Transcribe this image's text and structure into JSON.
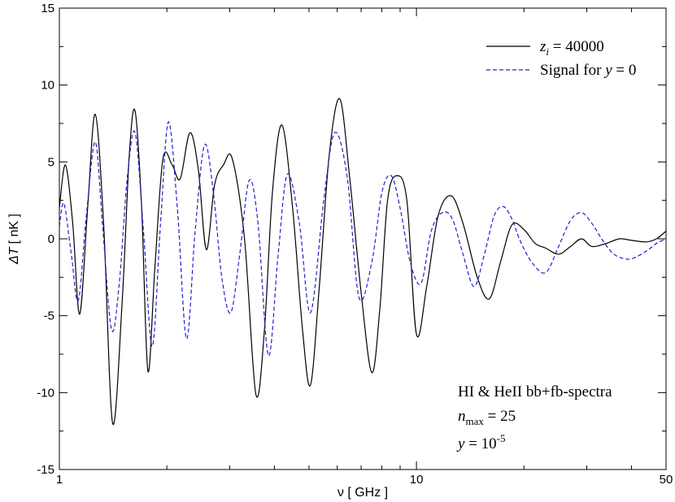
{
  "chart_data": {
    "type": "line",
    "title": "",
    "xlabel": "ν [ GHz ]",
    "ylabel_symbol": "ΔT",
    "ylabel_unit": "[ nK ]",
    "xscale": "log",
    "xlim": [
      1,
      50
    ],
    "ylim": [
      -15,
      15
    ],
    "x_ticks": [
      1,
      10,
      50
    ],
    "x_tick_labels": [
      "1",
      "10",
      "50"
    ],
    "y_ticks": [
      -15,
      -10,
      -5,
      0,
      5,
      10,
      15
    ],
    "y_tick_labels": [
      "-15",
      "-10",
      "-5",
      "0",
      "5",
      "10",
      "15"
    ],
    "grid": false,
    "legend_position": "top-right",
    "series": [
      {
        "name_var": "z",
        "name_sub": "i",
        "name_rest": " = 40000",
        "color": "#000000",
        "dash": "solid",
        "x": [
          1.0,
          1.04,
          1.09,
          1.14,
          1.2,
          1.26,
          1.33,
          1.41,
          1.5,
          1.57,
          1.63,
          1.7,
          1.77,
          1.85,
          1.95,
          2.07,
          2.18,
          2.32,
          2.45,
          2.58,
          2.72,
          2.88,
          3.05,
          3.3,
          3.55,
          3.75,
          3.95,
          4.2,
          4.5,
          4.8,
          5.05,
          5.35,
          5.7,
          6.1,
          6.5,
          7.0,
          7.5,
          7.9,
          8.3,
          8.8,
          9.4,
          10.0,
          10.7,
          11.5,
          12.5,
          13.5,
          14.8,
          16.0,
          17.2,
          18.5,
          20.0,
          21.5,
          23.0,
          25.0,
          27.0,
          29.0,
          31.0,
          34.0,
          37.0,
          40.0,
          44.0,
          47.0,
          50.0
        ],
        "y": [
          2.0,
          4.8,
          1.0,
          -4.9,
          2.0,
          8.1,
          1.0,
          -12.0,
          -4.0,
          5.5,
          8.3,
          2.0,
          -8.6,
          -2.0,
          5.2,
          4.8,
          3.9,
          6.9,
          4.5,
          -0.7,
          3.5,
          4.8,
          5.2,
          0.0,
          -10.1,
          -6.0,
          3.0,
          7.4,
          2.0,
          -6.0,
          -9.5,
          -3.0,
          5.5,
          9.1,
          4.0,
          -3.5,
          -8.7,
          -4.5,
          2.5,
          4.1,
          2.5,
          -6.2,
          -3.0,
          1.5,
          2.8,
          1.0,
          -2.5,
          -3.9,
          -1.5,
          0.9,
          0.6,
          -0.3,
          -0.6,
          -1.0,
          -0.5,
          0.0,
          -0.5,
          -0.3,
          0.0,
          -0.1,
          -0.2,
          0.0,
          0.5
        ]
      },
      {
        "name_text": "Signal for ",
        "name_var": "y",
        "name_rest": " = 0",
        "color": "#1f1fcf",
        "dash": "dashed",
        "x": [
          1.0,
          1.03,
          1.08,
          1.13,
          1.19,
          1.26,
          1.32,
          1.4,
          1.47,
          1.55,
          1.63,
          1.72,
          1.82,
          1.92,
          2.02,
          2.14,
          2.27,
          2.4,
          2.55,
          2.7,
          2.85,
          3.02,
          3.2,
          3.4,
          3.6,
          3.85,
          4.1,
          4.35,
          4.7,
          5.05,
          5.5,
          5.9,
          6.4,
          6.9,
          7.5,
          8.0,
          8.5,
          9.0,
          9.6,
          10.3,
          11.0,
          11.8,
          12.6,
          13.5,
          14.5,
          15.5,
          16.5,
          17.5,
          18.5,
          19.5,
          21.0,
          23.0,
          25.0,
          27.0,
          29.0,
          31.0,
          33.0,
          35.0,
          37.0,
          40.0,
          44.0,
          47.0,
          50.0
        ],
        "y": [
          0.8,
          2.3,
          -1.0,
          -4.0,
          1.5,
          6.3,
          1.0,
          -5.9,
          -3.0,
          4.0,
          6.9,
          0.5,
          -7.0,
          1.0,
          7.6,
          2.0,
          -6.5,
          0.5,
          6.1,
          3.0,
          -2.5,
          -4.8,
          -1.0,
          3.8,
          1.0,
          -7.6,
          -1.0,
          4.2,
          1.0,
          -4.8,
          2.5,
          6.9,
          4.0,
          -3.8,
          -1.5,
          3.0,
          4.1,
          2.0,
          -1.5,
          -2.9,
          0.5,
          1.7,
          1.3,
          -1.0,
          -3.1,
          -1.0,
          1.5,
          2.1,
          1.3,
          -0.1,
          -1.5,
          -2.2,
          -0.5,
          1.2,
          1.7,
          1.0,
          0.0,
          -0.8,
          -1.2,
          -1.3,
          -0.8,
          -0.3,
          0.0
        ]
      }
    ],
    "annotations": {
      "line1": "HI & HeII bb+fb-spectra",
      "line2_var": "n",
      "line2_sub": "max",
      "line2_rest": " = 25",
      "line3_var": "y",
      "line3_rest": " = 10",
      "line3_sup": "-5"
    }
  }
}
